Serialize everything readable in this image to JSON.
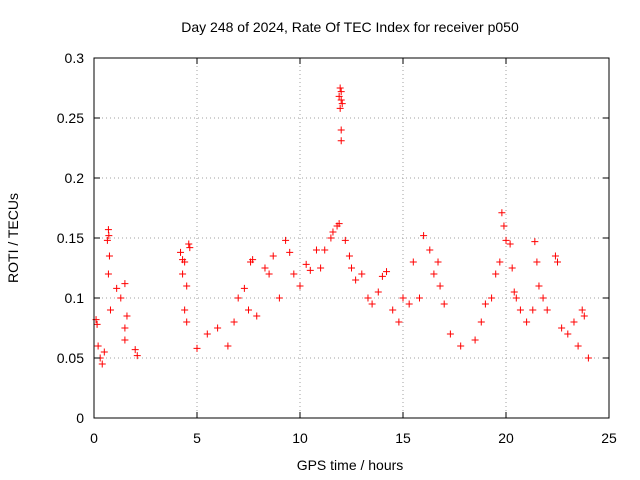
{
  "chart_data": {
    "type": "scatter",
    "title": "Day 248 of 2024, Rate Of TEC Index for receiver p050",
    "xlabel": "GPS time / hours",
    "ylabel": "ROTI / TECUs",
    "xlim": [
      0,
      25
    ],
    "ylim": [
      0,
      0.3
    ],
    "xticks": [
      0,
      5,
      10,
      15,
      20,
      25
    ],
    "yticks": [
      0,
      0.05,
      0.1,
      0.15,
      0.2,
      0.25,
      0.3
    ],
    "xtick_labels": [
      "0",
      "5",
      "10",
      "15",
      "20",
      "25"
    ],
    "ytick_labels": [
      "0",
      "0.05",
      "0.1",
      "0.15",
      "0.2",
      "0.25",
      "0.3"
    ],
    "grid": true,
    "marker": "+",
    "marker_color": "#ff0000",
    "series": [
      {
        "points": [
          [
            0.1,
            0.082
          ],
          [
            0.15,
            0.078
          ],
          [
            0.2,
            0.06
          ],
          [
            0.3,
            0.05
          ],
          [
            0.4,
            0.045
          ],
          [
            0.5,
            0.055
          ],
          [
            0.65,
            0.148
          ],
          [
            0.7,
            0.157
          ],
          [
            0.72,
            0.152
          ],
          [
            0.75,
            0.135
          ],
          [
            0.7,
            0.12
          ],
          [
            0.8,
            0.09
          ],
          [
            1.1,
            0.108
          ],
          [
            1.3,
            0.1
          ],
          [
            1.5,
            0.112
          ],
          [
            1.6,
            0.085
          ],
          [
            1.5,
            0.075
          ],
          [
            1.5,
            0.065
          ],
          [
            2.0,
            0.057
          ],
          [
            2.1,
            0.052
          ],
          [
            4.2,
            0.138
          ],
          [
            4.3,
            0.132
          ],
          [
            4.4,
            0.13
          ],
          [
            4.3,
            0.12
          ],
          [
            4.5,
            0.11
          ],
          [
            4.6,
            0.145
          ],
          [
            4.65,
            0.142
          ],
          [
            4.4,
            0.09
          ],
          [
            4.5,
            0.08
          ],
          [
            5.0,
            0.058
          ],
          [
            5.5,
            0.07
          ],
          [
            6.0,
            0.075
          ],
          [
            6.5,
            0.06
          ],
          [
            6.8,
            0.08
          ],
          [
            7.0,
            0.1
          ],
          [
            7.3,
            0.108
          ],
          [
            7.5,
            0.09
          ],
          [
            7.6,
            0.13
          ],
          [
            7.7,
            0.132
          ],
          [
            7.9,
            0.085
          ],
          [
            8.3,
            0.125
          ],
          [
            8.5,
            0.12
          ],
          [
            8.7,
            0.135
          ],
          [
            9.0,
            0.1
          ],
          [
            9.3,
            0.148
          ],
          [
            9.5,
            0.138
          ],
          [
            9.7,
            0.12
          ],
          [
            10.0,
            0.11
          ],
          [
            10.3,
            0.128
          ],
          [
            10.5,
            0.123
          ],
          [
            10.8,
            0.14
          ],
          [
            11.0,
            0.125
          ],
          [
            11.2,
            0.14
          ],
          [
            11.5,
            0.15
          ],
          [
            11.6,
            0.155
          ],
          [
            11.8,
            0.16
          ],
          [
            11.9,
            0.162
          ],
          [
            11.95,
            0.275
          ],
          [
            12.0,
            0.272
          ],
          [
            11.9,
            0.268
          ],
          [
            12.0,
            0.265
          ],
          [
            11.95,
            0.258
          ],
          [
            12.05,
            0.262
          ],
          [
            12.0,
            0.24
          ],
          [
            12.0,
            0.231
          ],
          [
            12.2,
            0.148
          ],
          [
            12.4,
            0.135
          ],
          [
            12.5,
            0.125
          ],
          [
            12.7,
            0.115
          ],
          [
            13.0,
            0.12
          ],
          [
            13.3,
            0.1
          ],
          [
            13.5,
            0.095
          ],
          [
            13.8,
            0.105
          ],
          [
            14.0,
            0.118
          ],
          [
            14.2,
            0.122
          ],
          [
            14.5,
            0.09
          ],
          [
            14.8,
            0.08
          ],
          [
            15.0,
            0.1
          ],
          [
            15.3,
            0.095
          ],
          [
            15.5,
            0.13
          ],
          [
            15.8,
            0.1
          ],
          [
            16.0,
            0.152
          ],
          [
            16.3,
            0.14
          ],
          [
            16.5,
            0.12
          ],
          [
            16.7,
            0.13
          ],
          [
            16.8,
            0.11
          ],
          [
            17.0,
            0.095
          ],
          [
            17.3,
            0.07
          ],
          [
            17.8,
            0.06
          ],
          [
            18.5,
            0.065
          ],
          [
            18.8,
            0.08
          ],
          [
            19.0,
            0.095
          ],
          [
            19.3,
            0.1
          ],
          [
            19.5,
            0.12
          ],
          [
            19.7,
            0.13
          ],
          [
            19.8,
            0.171
          ],
          [
            19.9,
            0.16
          ],
          [
            20.0,
            0.148
          ],
          [
            20.2,
            0.145
          ],
          [
            20.3,
            0.125
          ],
          [
            20.4,
            0.105
          ],
          [
            20.5,
            0.1
          ],
          [
            20.7,
            0.09
          ],
          [
            21.0,
            0.08
          ],
          [
            21.3,
            0.09
          ],
          [
            21.4,
            0.147
          ],
          [
            21.5,
            0.13
          ],
          [
            21.6,
            0.11
          ],
          [
            21.8,
            0.1
          ],
          [
            22.0,
            0.09
          ],
          [
            22.4,
            0.135
          ],
          [
            22.5,
            0.13
          ],
          [
            22.7,
            0.075
          ],
          [
            23.0,
            0.07
          ],
          [
            23.3,
            0.08
          ],
          [
            23.5,
            0.06
          ],
          [
            23.7,
            0.09
          ],
          [
            23.8,
            0.085
          ],
          [
            24.0,
            0.05
          ]
        ]
      }
    ]
  }
}
